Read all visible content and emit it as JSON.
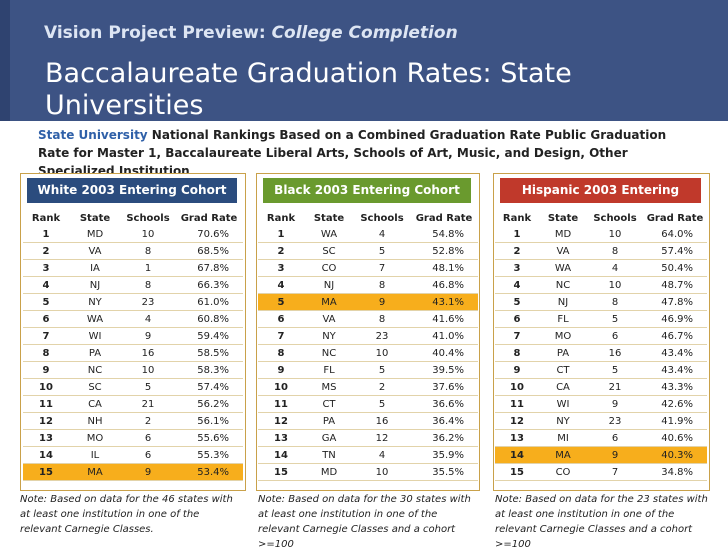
{
  "header": {
    "preview_label": "Vision Project Preview:",
    "preview_topic": "College Completion",
    "title": "Baccalaureate Graduation Rates: State Universities"
  },
  "subtitle": {
    "highlight": "State University",
    "text": " National Rankings Based on a Combined Graduation Rate Public Graduation Rate for Master 1, Baccalaureate Liberal Arts, Schools of Art, Music, and Design, Other Specialized Institution"
  },
  "columns": [
    "Rank",
    "State",
    "Schools",
    "Grad Rate"
  ],
  "panels": [
    {
      "heading": "White 2003 Entering Cohort",
      "rows": [
        [
          "1",
          "MD",
          "10",
          "70.6%"
        ],
        [
          "2",
          "VA",
          "8",
          "68.5%"
        ],
        [
          "3",
          "IA",
          "1",
          "67.8%"
        ],
        [
          "4",
          "NJ",
          "8",
          "66.3%"
        ],
        [
          "5",
          "NY",
          "23",
          "61.0%"
        ],
        [
          "6",
          "WA",
          "4",
          "60.8%"
        ],
        [
          "7",
          "WI",
          "9",
          "59.4%"
        ],
        [
          "8",
          "PA",
          "16",
          "58.5%"
        ],
        [
          "9",
          "NC",
          "10",
          "58.3%"
        ],
        [
          "10",
          "SC",
          "5",
          "57.4%"
        ],
        [
          "11",
          "CA",
          "21",
          "56.2%"
        ],
        [
          "12",
          "NH",
          "2",
          "56.1%"
        ],
        [
          "13",
          "MO",
          "6",
          "55.6%"
        ],
        [
          "14",
          "IL",
          "6",
          "55.3%"
        ],
        [
          "15",
          "MA",
          "9",
          "53.4%"
        ]
      ],
      "highlight_row": 14,
      "note": "Note: Based on data for the 46 states with at least one institution in one of the relevant Carnegie Classes."
    },
    {
      "heading": "Black 2003 Entering Cohort",
      "rows": [
        [
          "1",
          "WA",
          "4",
          "54.8%"
        ],
        [
          "2",
          "SC",
          "5",
          "52.8%"
        ],
        [
          "3",
          "CO",
          "7",
          "48.1%"
        ],
        [
          "4",
          "NJ",
          "8",
          "46.8%"
        ],
        [
          "5",
          "MA",
          "9",
          "43.1%"
        ],
        [
          "6",
          "VA",
          "8",
          "41.6%"
        ],
        [
          "7",
          "NY",
          "23",
          "41.0%"
        ],
        [
          "8",
          "NC",
          "10",
          "40.4%"
        ],
        [
          "9",
          "FL",
          "5",
          "39.5%"
        ],
        [
          "10",
          "MS",
          "2",
          "37.6%"
        ],
        [
          "11",
          "CT",
          "5",
          "36.6%"
        ],
        [
          "12",
          "PA",
          "16",
          "36.4%"
        ],
        [
          "13",
          "GA",
          "12",
          "36.2%"
        ],
        [
          "14",
          "TN",
          "4",
          "35.9%"
        ],
        [
          "15",
          "MD",
          "10",
          "35.5%"
        ]
      ],
      "highlight_row": 4,
      "note": "Note: Based on data for the 30 states with at least one institution in one of the relevant Carnegie Classes and a cohort >=100"
    },
    {
      "heading": "Hispanic 2003 Entering Cohort",
      "rows": [
        [
          "1",
          "MD",
          "10",
          "64.0%"
        ],
        [
          "2",
          "VA",
          "8",
          "57.4%"
        ],
        [
          "3",
          "WA",
          "4",
          "50.4%"
        ],
        [
          "4",
          "NC",
          "10",
          "48.7%"
        ],
        [
          "5",
          "NJ",
          "8",
          "47.8%"
        ],
        [
          "6",
          "FL",
          "5",
          "46.9%"
        ],
        [
          "7",
          "MO",
          "6",
          "46.7%"
        ],
        [
          "8",
          "PA",
          "16",
          "43.4%"
        ],
        [
          "9",
          "CT",
          "5",
          "43.4%"
        ],
        [
          "10",
          "CA",
          "21",
          "43.3%"
        ],
        [
          "11",
          "WI",
          "9",
          "42.6%"
        ],
        [
          "12",
          "NY",
          "23",
          "41.9%"
        ],
        [
          "13",
          "MI",
          "6",
          "40.6%"
        ],
        [
          "14",
          "MA",
          "9",
          "40.3%"
        ],
        [
          "15",
          "CO",
          "7",
          "34.8%"
        ]
      ],
      "highlight_row": 13,
      "note": "Note: Based on data for the 23 states with at least one institution in one of the relevant Carnegie Classes and a cohort >=100"
    }
  ]
}
